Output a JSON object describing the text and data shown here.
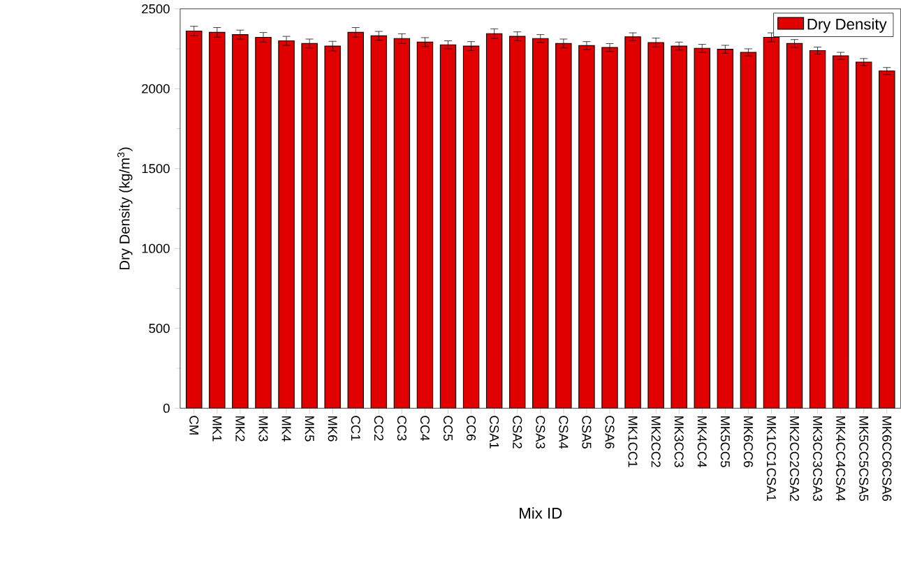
{
  "chart_data": {
    "type": "bar",
    "xlabel": "Mix ID",
    "ylabel": "Dry Density (kg/m$^{3}$)",
    "categories": [
      "CM",
      "MK1",
      "MK2",
      "MK3",
      "MK4",
      "MK5",
      "MK6",
      "CC1",
      "CC2",
      "CC3",
      "CC4",
      "CC5",
      "CC6",
      "CSA1",
      "CSA2",
      "CSA3",
      "CSA4",
      "CSA5",
      "CSA6",
      "MK1CC1",
      "MK2CC2",
      "MK3CC3",
      "MK4CC4",
      "MK5CC5",
      "MK6CC6",
      "MK1CC1CSA1",
      "MK2CC2CSA2",
      "MK3CC3CSA3",
      "MK4CC4CSA4",
      "MK5CC5CSA5",
      "MK6CC6CSA6"
    ],
    "series": [
      {
        "name": "Dry Density",
        "color": "#e00000",
        "values": [
          2361,
          2353,
          2339,
          2322,
          2300,
          2283,
          2267,
          2353,
          2331,
          2314,
          2292,
          2275,
          2267,
          2345,
          2328,
          2314,
          2283,
          2270,
          2258,
          2325,
          2289,
          2267,
          2253,
          2247,
          2228,
          2322,
          2283,
          2239,
          2206,
          2167,
          2111
        ],
        "errors": [
          30,
          30,
          28,
          30,
          28,
          28,
          30,
          30,
          28,
          30,
          28,
          25,
          28,
          30,
          28,
          25,
          28,
          25,
          25,
          25,
          28,
          25,
          25,
          25,
          22,
          28,
          25,
          22,
          22,
          22,
          22
        ]
      }
    ],
    "ylim": [
      0,
      2500
    ],
    "yticks": [
      0,
      500,
      1000,
      1500,
      2000,
      2500
    ],
    "legend": "top right"
  }
}
